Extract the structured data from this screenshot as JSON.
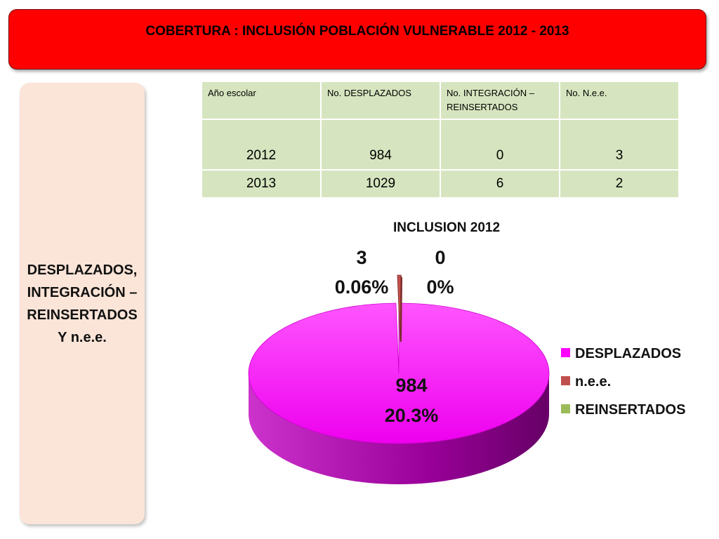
{
  "banner": {
    "title": "COBERTURA :  INCLUSIÓN POBLACIÓN VULNERABLE  2012 - 2013",
    "color": "#ff0000"
  },
  "side_panel": {
    "lines": [
      "DESPLAZADOS,",
      "INTEGRACIÓN –",
      "REINSERTADOS",
      "Y n.e.e."
    ]
  },
  "table": {
    "headers": [
      "Año escolar",
      "No. DESPLAZADOS",
      "No.  INTEGRACIÓN – REINSERTADOS",
      "No. N.e.e."
    ],
    "rows": [
      [
        "2012",
        "984",
        "0",
        "3"
      ],
      [
        "2013",
        "1029",
        "6",
        "2"
      ]
    ]
  },
  "chart_data": {
    "type": "pie",
    "title": "INCLUSION 2012",
    "slices": [
      {
        "label": "DESPLAZADOS",
        "value": 984,
        "percent_label": "20.3%",
        "color": "#ff00ff"
      },
      {
        "label": "n.e.e.",
        "value": 3,
        "percent_label": "0.06%",
        "color": "#c0504d"
      },
      {
        "label": "REINSERTADOS",
        "value": 0,
        "percent_label": "0%",
        "color": "#9bbb59"
      }
    ],
    "legend": [
      "DESPLAZADOS",
      "n.e.e.",
      "REINSERTADOS"
    ],
    "legend_position": "right",
    "style": "3d"
  }
}
